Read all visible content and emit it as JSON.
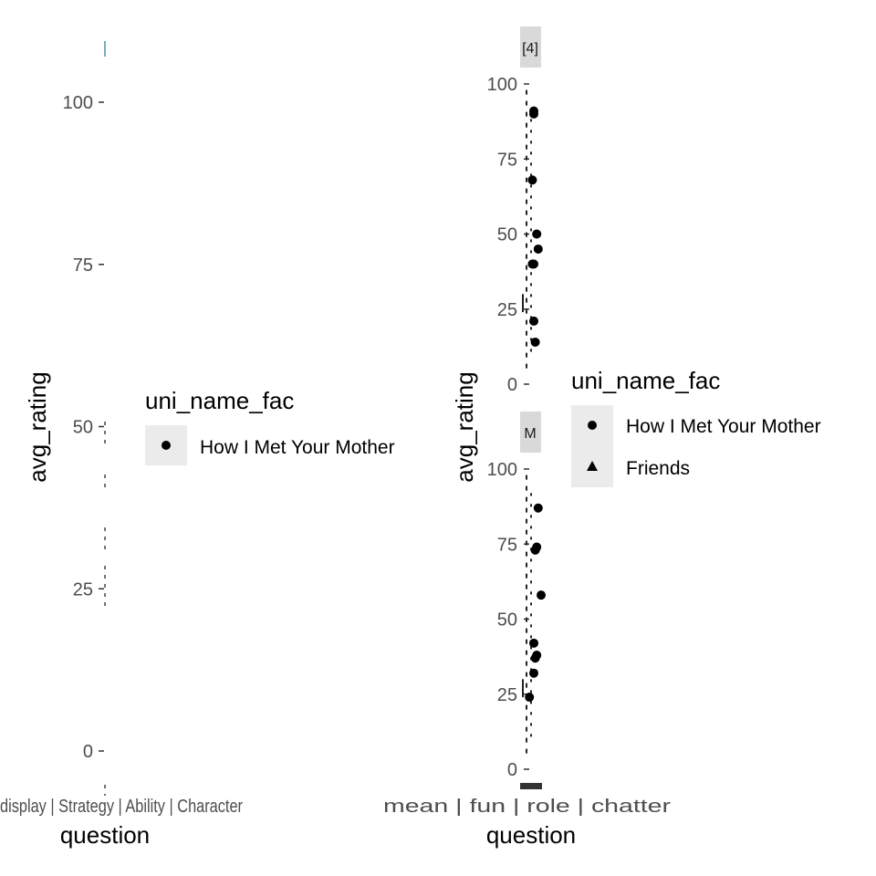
{
  "chart_data": [
    {
      "type": "scatter",
      "panel": "left",
      "xlabel": "question",
      "ylabel": "avg_rating",
      "ylim": [
        -5,
        108
      ],
      "yticks": [
        0,
        25,
        50,
        75,
        100
      ],
      "x_tick_text": "display | Strategy | Ability | Character",
      "legend": {
        "title": "uni_name_fac",
        "entries": [
          {
            "label": "How I Met Your Mother",
            "shape": "circle"
          }
        ]
      },
      "series": [
        {
          "name": "How I Met Your Mother",
          "points": []
        }
      ]
    },
    {
      "type": "scatter",
      "panel": "right",
      "xlabel": "question",
      "ylabel": "avg_rating",
      "ylim": [
        -5,
        108
      ],
      "yticks": [
        0,
        25,
        50,
        75,
        100
      ],
      "x_tick_text": "mean | fun | role | chatter",
      "legend": {
        "title": "uni_name_fac",
        "entries": [
          {
            "label": "How I Met Your Mother",
            "shape": "circle"
          },
          {
            "label": "Friends",
            "shape": "triangle"
          }
        ]
      },
      "facets": [
        {
          "strip": "[4]",
          "points": [
            {
              "x": 0,
              "y": 91
            },
            {
              "x": 0,
              "y": 90
            },
            {
              "x": -1,
              "y": 68
            },
            {
              "x": 2,
              "y": 50
            },
            {
              "x": 3,
              "y": 45
            },
            {
              "x": 0,
              "y": 40
            },
            {
              "x": -1,
              "y": 40
            },
            {
              "x": 0,
              "y": 21
            },
            {
              "x": 1,
              "y": 14
            }
          ]
        },
        {
          "strip": "M",
          "points": [
            {
              "x": 3,
              "y": 87
            },
            {
              "x": 2,
              "y": 74
            },
            {
              "x": 1,
              "y": 73
            },
            {
              "x": 5,
              "y": 58
            },
            {
              "x": 0,
              "y": 42
            },
            {
              "x": 2,
              "y": 38
            },
            {
              "x": 1,
              "y": 37
            },
            {
              "x": 0,
              "y": 32
            },
            {
              "x": -3,
              "y": 24
            }
          ]
        }
      ]
    }
  ]
}
